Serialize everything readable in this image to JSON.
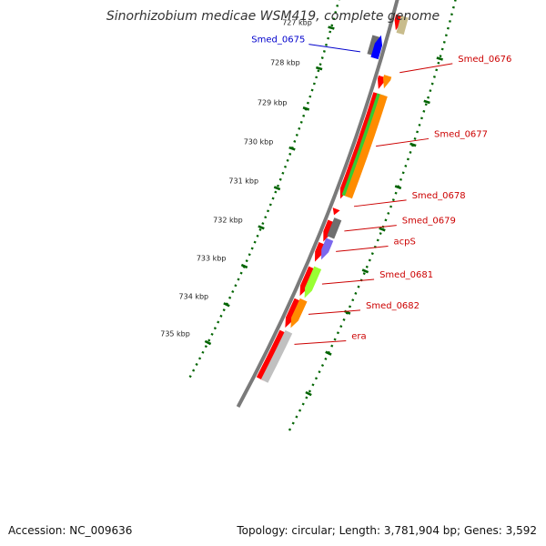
{
  "header": {
    "title": "Sinorhizobium medicae WSM419, complete genome"
  },
  "footer": {
    "accession": "Accession: NC_009636",
    "summary": "Topology: circular; Length: 3,781,904 bp; Genes: 3,592"
  },
  "colors": {
    "backbone": "#7a7a7a",
    "tick": "#006400",
    "forward_label": "#0000cc",
    "reverse_label": "#cc0000",
    "red": "#ff0000",
    "orange": "#ff8c00",
    "green": "#33cc33",
    "gray": "#6e6e6e",
    "blue": "#0000ff",
    "purple": "#7b68ee",
    "lime": "#99ff33",
    "silver": "#c0c0c0",
    "khaki": "#c8bc8c"
  },
  "scale": {
    "ticks": [
      {
        "kbp": 727,
        "label": "727 kbp"
      },
      {
        "kbp": 728,
        "label": "728 kbp"
      },
      {
        "kbp": 729,
        "label": "729 kbp"
      },
      {
        "kbp": 730,
        "label": "730 kbp"
      },
      {
        "kbp": 731,
        "label": "731 kbp"
      },
      {
        "kbp": 732,
        "label": "732 kbp"
      },
      {
        "kbp": 733,
        "label": "733 kbp"
      },
      {
        "kbp": 734,
        "label": "734 kbp"
      },
      {
        "kbp": 735,
        "label": "735 kbp"
      }
    ]
  },
  "features": [
    {
      "lane": -1.7,
      "start": 726.9,
      "end": 727.35,
      "color": "gray",
      "arrow": false
    },
    {
      "lane": -1.0,
      "start": 726.85,
      "end": 727.4,
      "color": "blue",
      "arrow": true,
      "dir": -1
    },
    {
      "lane": 1.0,
      "start": 726.3,
      "end": 726.65,
      "color": "red",
      "arrow": true,
      "dir": 1
    },
    {
      "lane": 1.8,
      "start": 726.3,
      "end": 726.7,
      "color": "khaki",
      "arrow": false
    },
    {
      "lane": 1.0,
      "start": 727.75,
      "end": 728.05,
      "color": "red",
      "arrow": true,
      "dir": 1
    },
    {
      "lane": 1.8,
      "start": 727.7,
      "end": 728.0,
      "color": "orange",
      "arrow": true,
      "dir": 1
    },
    {
      "lane": 1.0,
      "start": 728.15,
      "end": 730.7,
      "color": "red",
      "arrow": true,
      "dir": 1
    },
    {
      "lane": 1.6,
      "start": 728.15,
      "end": 730.6,
      "color": "green",
      "arrow": false
    },
    {
      "lane": 2.1,
      "start": 728.15,
      "end": 730.6,
      "color": "orange",
      "arrow": false
    },
    {
      "lane": 1.0,
      "start": 730.95,
      "end": 731.1,
      "color": "red",
      "arrow": true,
      "dir": 1
    },
    {
      "lane": 1.0,
      "start": 731.25,
      "end": 731.75,
      "color": "red",
      "arrow": true,
      "dir": 1
    },
    {
      "lane": 1.8,
      "start": 731.15,
      "end": 731.6,
      "color": "gray",
      "arrow": false
    },
    {
      "lane": 1.0,
      "start": 731.8,
      "end": 732.25,
      "color": "red",
      "arrow": true,
      "dir": 1
    },
    {
      "lane": 1.8,
      "start": 731.65,
      "end": 732.15,
      "color": "purple",
      "arrow": true,
      "dir": 1
    },
    {
      "lane": 1.0,
      "start": 732.4,
      "end": 733.1,
      "color": "red",
      "arrow": true,
      "dir": 1
    },
    {
      "lane": 1.8,
      "start": 732.35,
      "end": 733.1,
      "color": "lime",
      "arrow": true,
      "dir": 1
    },
    {
      "lane": 1.0,
      "start": 733.2,
      "end": 733.9,
      "color": "red",
      "arrow": true,
      "dir": 1
    },
    {
      "lane": 1.8,
      "start": 733.15,
      "end": 733.85,
      "color": "orange",
      "arrow": true,
      "dir": 1
    },
    {
      "lane": 1.0,
      "start": 734.0,
      "end": 735.2,
      "color": "red",
      "arrow": false
    },
    {
      "lane": 1.8,
      "start": 733.95,
      "end": 735.2,
      "color": "silver",
      "arrow": false
    }
  ],
  "gene_labels": [
    {
      "text": "Smed_0675",
      "side": "left",
      "kbp": 727.35
    },
    {
      "text": "Smed_0676",
      "side": "right",
      "kbp": 727.55
    },
    {
      "text": "Smed_0677",
      "side": "right",
      "kbp": 729.3
    },
    {
      "text": "Smed_0678",
      "side": "right",
      "kbp": 730.75
    },
    {
      "text": "Smed_0679",
      "side": "right",
      "kbp": 731.35
    },
    {
      "text": "acpS",
      "side": "right",
      "kbp": 731.85
    },
    {
      "text": "Smed_0681",
      "side": "right",
      "kbp": 732.65
    },
    {
      "text": "Smed_0682",
      "side": "right",
      "kbp": 733.4
    },
    {
      "text": "era",
      "side": "right",
      "kbp": 734.15
    }
  ]
}
